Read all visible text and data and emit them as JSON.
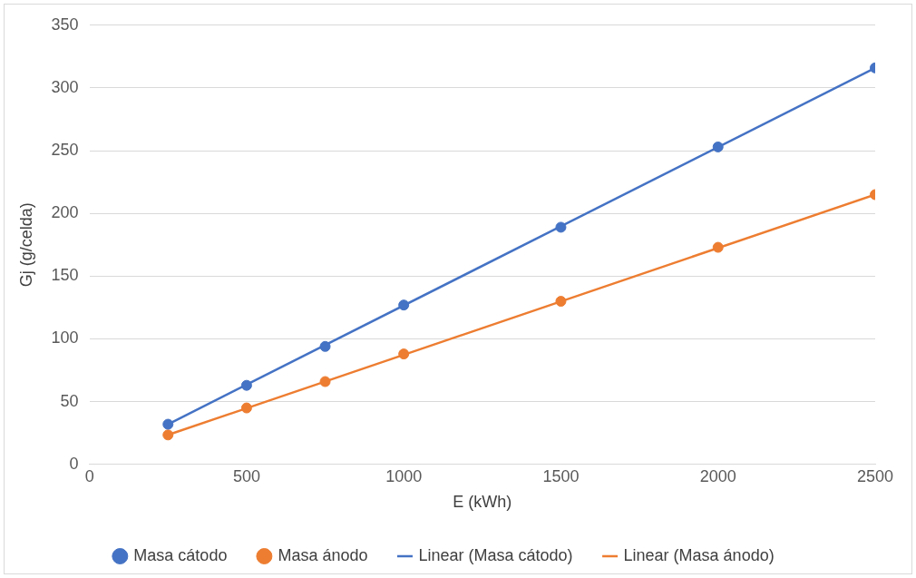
{
  "chart_data": {
    "type": "scatter",
    "xlabel": "E (kWh)",
    "ylabel": "Gj (g/celda)",
    "xlim": [
      0,
      2500
    ],
    "xticks": [
      0,
      500,
      1000,
      1500,
      2000,
      2500
    ],
    "ylim": [
      0,
      350
    ],
    "yticks": [
      0,
      50,
      100,
      150,
      200,
      250,
      300,
      350
    ],
    "grid": "y",
    "legend": "bottom",
    "marker": "circle",
    "series": [
      {
        "name": "Masa cátodo",
        "color": "#4472c4",
        "x": [
          250,
          500,
          750,
          1000,
          1500,
          2000,
          2500
        ],
        "values": [
          32,
          63,
          94,
          127,
          189,
          253,
          316
        ]
      },
      {
        "name": "Masa ánodo",
        "color": "#ed7d31",
        "x": [
          250,
          500,
          750,
          1000,
          1500,
          2000,
          2500
        ],
        "values": [
          23.5,
          45,
          66,
          88,
          130,
          173,
          215
        ]
      },
      {
        "name": "Linear (Masa cátodo)",
        "type": "line",
        "marker": "none",
        "color": "#4472c4",
        "x": [
          250,
          2500
        ],
        "values": [
          32,
          316
        ]
      },
      {
        "name": "Linear (Masa ánodo)",
        "type": "line",
        "marker": "none",
        "color": "#ed7d31",
        "x": [
          250,
          2500
        ],
        "values": [
          23.5,
          215
        ]
      }
    ]
  }
}
